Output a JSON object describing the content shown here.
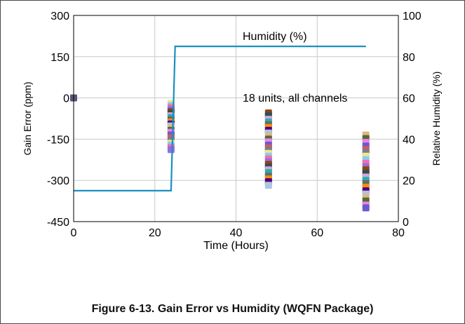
{
  "caption": "Figure 6-13. Gain Error vs Humidity (WQFN Package)",
  "chart_data": {
    "type": "scatter",
    "xlabel": "Time (Hours)",
    "ylabel": "Gain Error (ppm)",
    "y2label": "Relative Humidity (%)",
    "xlim": [
      0,
      80
    ],
    "ylim": [
      -450,
      300
    ],
    "y2lim": [
      0,
      100
    ],
    "xticks": [
      "0",
      "20",
      "40",
      "60",
      "80"
    ],
    "yticks": [
      "300",
      "150",
      "0",
      "-150",
      "-300",
      "-450"
    ],
    "y2ticks": [
      "100",
      "80",
      "60",
      "40",
      "20",
      "0"
    ],
    "grid": true,
    "annotations": [
      "Humidity (%)",
      "18 units, all channels"
    ],
    "series": [
      {
        "axis": "y2",
        "kind": "line",
        "color": "#1a8fc0",
        "x": [
          0,
          24,
          25,
          72
        ],
        "y": [
          15,
          15,
          85,
          85
        ]
      },
      {
        "axis": "y",
        "kind": "scatter",
        "groups": [
          {
            "x": 0,
            "values": [
              0
            ]
          },
          {
            "x": 24,
            "values": [
              -20,
              -28,
              -35,
              -42,
              -50,
              -58,
              -65,
              -72,
              -80,
              -88,
              -95,
              -102,
              -110,
              -118,
              -125,
              -135,
              -145,
              -155,
              -165,
              -172,
              -180,
              -188
            ]
          },
          {
            "x": 48,
            "values": [
              -55,
              -65,
              -78,
              -88,
              -98,
              -108,
              -118,
              -128,
              -140,
              -150,
              -160,
              -172,
              -182,
              -192,
              -202,
              -212,
              -222,
              -232,
              -242,
              -252,
              -262,
              -272,
              -285,
              -295,
              -305,
              -318
            ]
          },
          {
            "x": 72,
            "values": [
              -135,
              -148,
              -162,
              -175,
              -188,
              -200,
              -212,
              -225,
              -238,
              -250,
              -262,
              -275,
              -288,
              -300,
              -312,
              -325,
              -338,
              -350,
              -362,
              -375,
              -390,
              -400
            ]
          }
        ]
      }
    ],
    "marker_colors": [
      "#f0e68c",
      "#87ceeb",
      "#ff69b4",
      "#9370db",
      "#8b4513",
      "#2f4f4f",
      "#dda0dd",
      "#20b2aa",
      "#696969",
      "#ff8c00",
      "#4b0082",
      "#b0c4de",
      "#deb887",
      "#556b2f",
      "#ee82ee",
      "#6a5acd",
      "#cd5c5c",
      "#708090"
    ]
  }
}
